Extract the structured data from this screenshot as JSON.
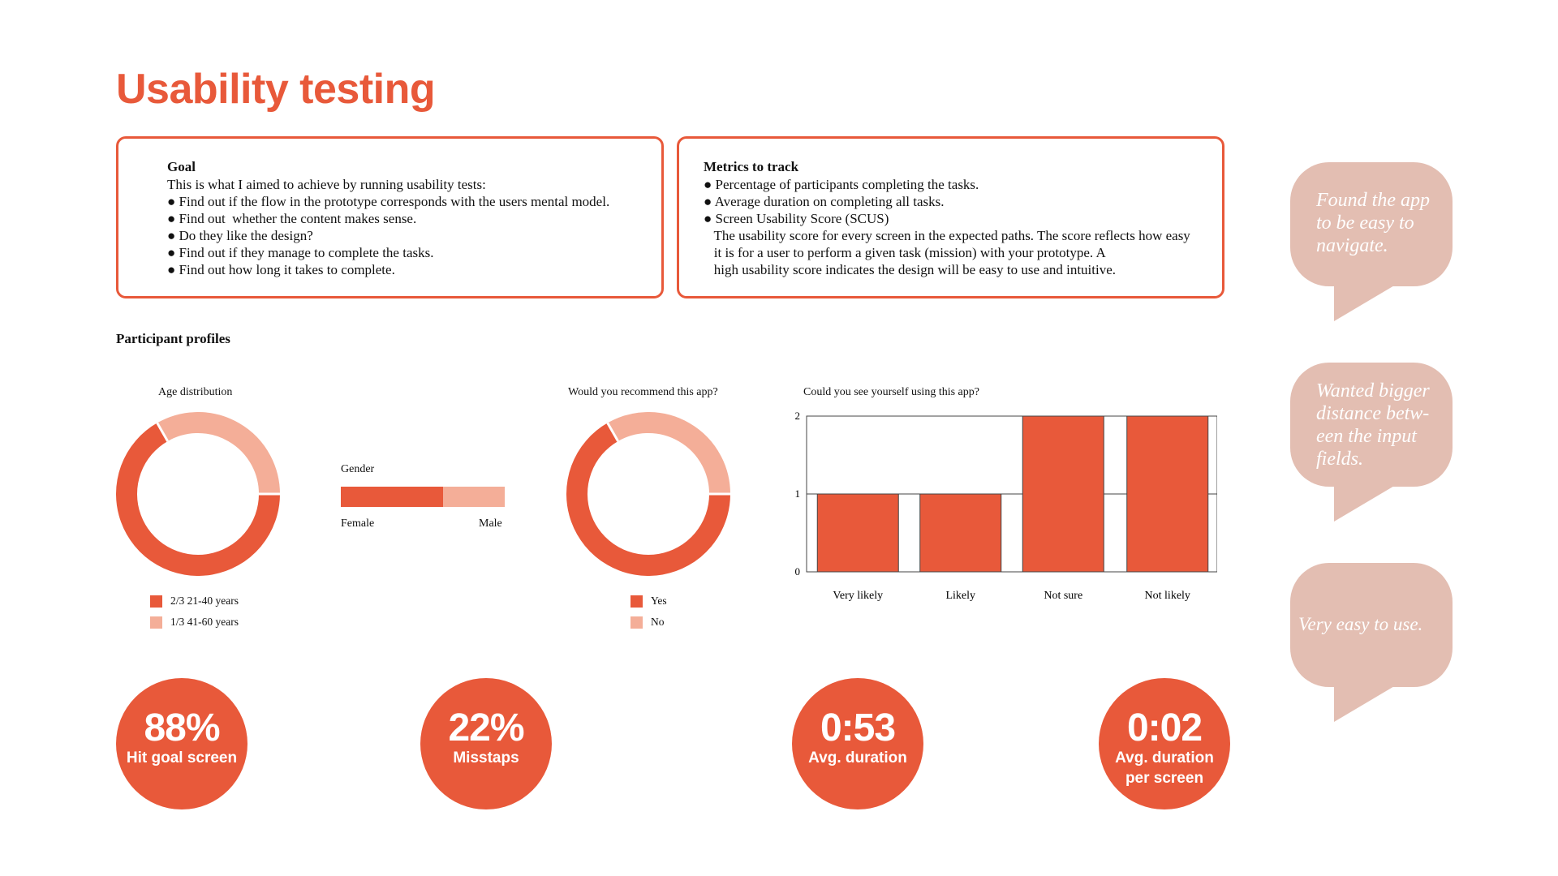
{
  "title": "Usability testing",
  "goal": {
    "heading": "Goal",
    "lines": [
      "This is what I aimed to achieve by running usability tests:",
      "● Find out if the flow in the prototype corresponds with the users mental model.",
      "● Find out  whether the content makes sense.",
      "● Do they like the design?",
      "● Find out if they manage to complete the tasks.",
      "● Find out how long it takes to complete."
    ]
  },
  "metrics": {
    "heading": "Metrics to track",
    "lines": [
      "● Percentage of participants completing the tasks.",
      "● Average duration on completing all tasks.",
      "● Screen Usability Score (SCUS)",
      "   The usability score for every screen in the expected paths. The score reflects how easy",
      "   it is for a user to perform a given task (mission) with your prototype. A",
      "   high usability score indicates the design will be easy to use and intuitive."
    ]
  },
  "participant_profiles": "Participant profiles",
  "colors": {
    "accent": "#E8593A",
    "light": "#F4AE98",
    "bubble": "#E3BEB2"
  },
  "chart_data": [
    {
      "type": "pie",
      "title": "Age distribution",
      "labels": [
        "2/3 21-40 years",
        "1/3 41-60 years"
      ],
      "values": [
        0.667,
        0.333
      ]
    },
    {
      "type": "bar",
      "title": "Gender",
      "labels": [
        "Female",
        "Male"
      ],
      "values": [
        0.625,
        0.375
      ]
    },
    {
      "type": "pie",
      "title": "Would you recommend this app?",
      "labels": [
        "Yes",
        "No"
      ],
      "values": [
        0.667,
        0.333
      ]
    },
    {
      "type": "bar",
      "title": "Could you see yourself using this app?",
      "categories": [
        "Very likely",
        "Likely",
        "Not sure",
        "Not likely"
      ],
      "values": [
        1,
        1,
        2,
        2
      ],
      "ylim": [
        0,
        2
      ],
      "yticks": [
        "0",
        "1",
        "2"
      ]
    }
  ],
  "stats": [
    {
      "value": "88%",
      "label": "Hit goal screen"
    },
    {
      "value": "22%",
      "label": "Misstaps"
    },
    {
      "value": "0:53",
      "label": "Avg. duration"
    },
    {
      "value": "0:02",
      "label": "Avg. duration per screen"
    }
  ],
  "bubbles": [
    {
      "lines": [
        "Found the app",
        "to be easy to",
        "navigate."
      ]
    },
    {
      "lines": [
        "Wanted bigger",
        "distance betw-",
        "een the input",
        "fields."
      ]
    },
    {
      "lines": [
        "Very easy to use."
      ]
    }
  ]
}
